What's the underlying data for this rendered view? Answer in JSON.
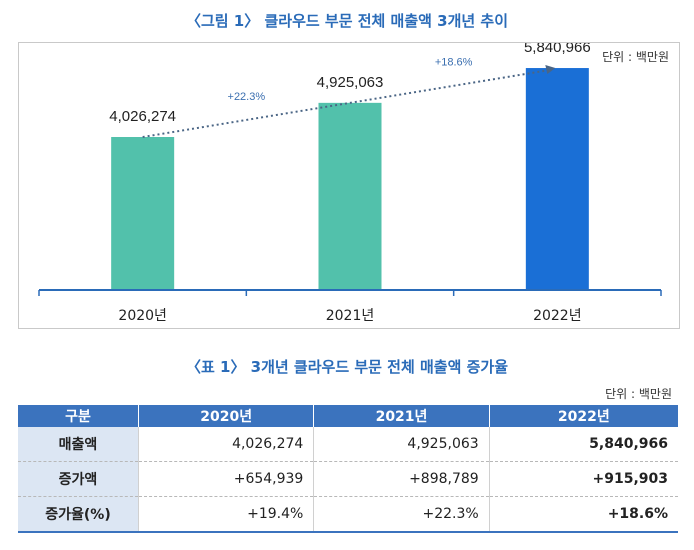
{
  "figure": {
    "title": "〈그림 1〉 클라우드 부문 전체 매출액 3개년 추이",
    "unit": "단위 : 백만원"
  },
  "chart_data": {
    "type": "bar",
    "categories": [
      "2020년",
      "2021년",
      "2022년"
    ],
    "values": [
      4026274,
      4925063,
      5840966
    ],
    "value_labels": [
      "4,026,274",
      "4,925,063",
      "5,840,966"
    ],
    "growth_labels": [
      "+22.3%",
      "+18.6%"
    ],
    "colors": [
      "#52c1ab",
      "#52c1ab",
      "#1a6fd6"
    ],
    "trend": "dotted",
    "ylim": [
      0,
      6500000
    ],
    "grid": false
  },
  "table": {
    "title": "〈표 1〉 3개년 클라우드 부문 전체 매출액 증가율",
    "unit": "단위 : 백만원",
    "headers": [
      "구분",
      "2020년",
      "2021년",
      "2022년"
    ],
    "rows": [
      {
        "label": "매출액",
        "cells": [
          "4,026,274",
          "4,925,063",
          "5,840,966"
        ]
      },
      {
        "label": "증가액",
        "cells": [
          "+654,939",
          "+898,789",
          "+915,903"
        ]
      },
      {
        "label": "증가율(%)",
        "cells": [
          "+19.4%",
          "+22.3%",
          "+18.6%"
        ]
      }
    ]
  }
}
